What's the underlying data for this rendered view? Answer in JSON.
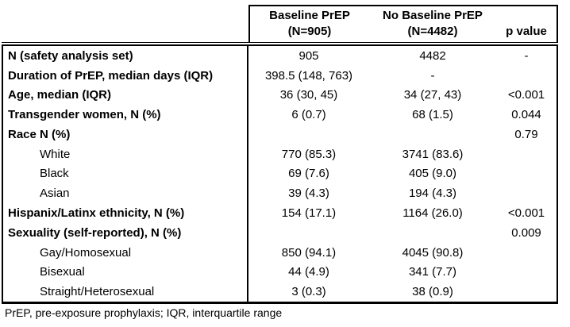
{
  "table": {
    "header": {
      "baseline_group_line1": "Baseline PrEP",
      "baseline_group_line2": "(N=905)",
      "no_baseline_group_line1": "No Baseline PrEP",
      "no_baseline_group_line2": "(N=4482)",
      "p_label": "p value"
    },
    "columns": [
      "",
      "Baseline PrEP (N=905)",
      "No Baseline PrEP (N=4482)",
      "p value"
    ],
    "rows": [
      {
        "label": "N (safety analysis set)",
        "baseline": "905",
        "no_baseline": "4482",
        "p": "-",
        "style": "main"
      },
      {
        "label": "Duration of PrEP, median days (IQR)",
        "baseline": "398.5 (148, 763)",
        "no_baseline": "-",
        "p": "",
        "style": "main"
      },
      {
        "label": "Age, median (IQR)",
        "baseline": "36 (30, 45)",
        "no_baseline": "34 (27, 43)",
        "p": "<0.001",
        "style": "main"
      },
      {
        "label": "Transgender women, N (%)",
        "baseline": "6 (0.7)",
        "no_baseline": "68 (1.5)",
        "p": "0.044",
        "style": "main"
      },
      {
        "label": "Race N (%)",
        "baseline": "",
        "no_baseline": "",
        "p": "0.79",
        "style": "main"
      },
      {
        "label": "White",
        "baseline": "770 (85.3)",
        "no_baseline": "3741 (83.6)",
        "p": "",
        "style": "sub"
      },
      {
        "label": "Black",
        "baseline": "69 (7.6)",
        "no_baseline": "405 (9.0)",
        "p": "",
        "style": "sub"
      },
      {
        "label": "Asian",
        "baseline": "39 (4.3)",
        "no_baseline": "194 (4.3)",
        "p": "",
        "style": "sub"
      },
      {
        "label": "Hispanix/Latinx ethnicity, N (%)",
        "baseline": "154 (17.1)",
        "no_baseline": "1164 (26.0)",
        "p": "<0.001",
        "style": "main"
      },
      {
        "label": "Sexuality (self-reported), N (%)",
        "baseline": "",
        "no_baseline": "",
        "p": "0.009",
        "style": "main"
      },
      {
        "label": "Gay/Homosexual",
        "baseline": "850 (94.1)",
        "no_baseline": "4045 (90.8)",
        "p": "",
        "style": "sub"
      },
      {
        "label": "Bisexual",
        "baseline": "44 (4.9)",
        "no_baseline": "341 (7.7)",
        "p": "",
        "style": "sub"
      },
      {
        "label": "Straight/Heterosexual",
        "baseline": "3 (0.3)",
        "no_baseline": "38 (0.9)",
        "p": "",
        "style": "sub"
      }
    ],
    "footnote": "PrEP, pre-exposure prophylaxis; IQR, interquartile range"
  },
  "colors": {
    "text": "#000000",
    "border": "#000000",
    "background": "#ffffff"
  }
}
